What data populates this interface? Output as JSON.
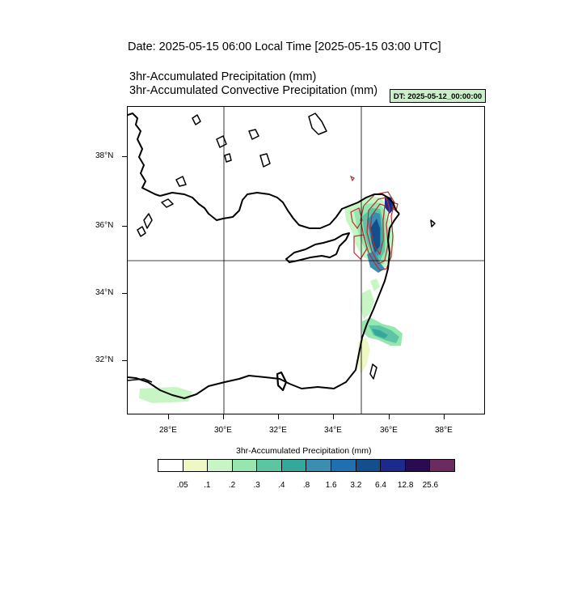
{
  "header": {
    "date_title": "Date: 2025-05-15  06:00 Local Time [2025-05-15  03:00 UTC]",
    "title_line1": "3hr-Accumulated Precipitation   (mm)",
    "title_line2": "3hr-Accumulated Convective Precipitation   (mm)",
    "dt_badge": "DT: 2025-05-12_00:00:00"
  },
  "map": {
    "lat_labels": [
      "38°N",
      "36°N",
      "34°N",
      "32°N"
    ],
    "lon_labels": [
      "28°E",
      "30°E",
      "32°E",
      "34°E",
      "36°E",
      "38°E"
    ],
    "gridlines": {
      "lon": [
        30,
        35
      ],
      "lat": [
        35
      ]
    },
    "coastline_color": "#000000",
    "convective_contour_color": "#b03030"
  },
  "legend": {
    "title": "3hr-Accumulated Precipitation  (mm)",
    "colors": [
      "#ffffff",
      "#eef8c4",
      "#c8f5c4",
      "#96e6b0",
      "#5cc6a4",
      "#35a89c",
      "#3a8fb0",
      "#1e70b0",
      "#134f8c",
      "#1b2a8c",
      "#2a0a50",
      "#6b2a60"
    ],
    "labels": [
      ".05",
      ".1",
      ".2",
      ".3",
      ".4",
      ".8",
      "1.6",
      "3.2",
      "6.4",
      "12.8",
      "25.6"
    ]
  }
}
